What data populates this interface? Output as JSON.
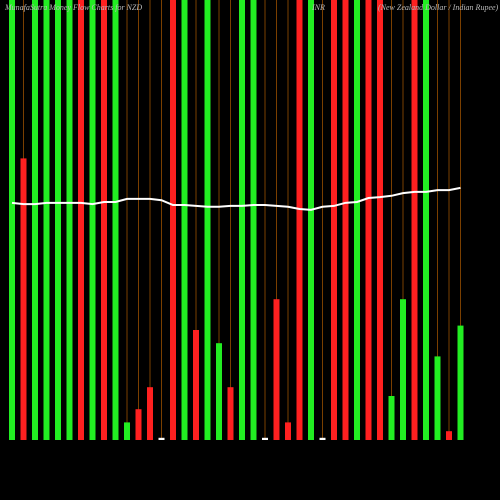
{
  "chart_data": {
    "type": "bar",
    "title": "MunafaSutra Money Flow Charts for NZD",
    "symbol": "INR",
    "subtitle": "(New Zealand Dollar / Indian Rupee)",
    "ylim": [
      0,
      100
    ],
    "values": [
      100,
      64,
      100,
      100,
      100,
      100,
      100,
      100,
      100,
      100,
      4,
      7,
      12,
      0.5,
      100,
      100,
      25,
      100,
      22,
      12,
      100,
      100,
      0.5,
      32,
      4,
      100,
      100,
      0.5,
      100,
      100,
      100,
      100,
      100,
      10,
      32,
      100,
      100,
      19,
      2,
      26
    ],
    "colors": [
      "#22ee22",
      "#ff2020",
      "#22ee22",
      "#22ee22",
      "#22ee22",
      "#22ee22",
      "#ff2020",
      "#22ee22",
      "#ff2020",
      "#22ee22",
      "#22ee22",
      "#ff2020",
      "#ff2020",
      "#ffffff",
      "#ff2020",
      "#22ee22",
      "#ff2020",
      "#22ee22",
      "#22ee22",
      "#ff2020",
      "#22ee22",
      "#22ee22",
      "#ffffff",
      "#ff2020",
      "#ff2020",
      "#ff2020",
      "#22ee22",
      "#ffffff",
      "#ff2020",
      "#ff2020",
      "#22ee22",
      "#ff2020",
      "#ff2020",
      "#22ee22",
      "#22ee22",
      "#ff2020",
      "#22ee22",
      "#22ee22",
      "#ff2020",
      "#22ee22"
    ],
    "line": {
      "color": "#ffffff",
      "values": [
        53.9,
        53.6,
        53.6,
        53.9,
        53.9,
        53.9,
        53.9,
        53.6,
        54.1,
        54.1,
        54.8,
        54.8,
        54.8,
        54.5,
        53.4,
        53.4,
        53.2,
        53.0,
        53.0,
        53.2,
        53.2,
        53.4,
        53.4,
        53.2,
        53.0,
        52.5,
        52.3,
        53.0,
        53.2,
        53.9,
        54.1,
        55.0,
        55.2,
        55.5,
        56.1,
        56.4,
        56.4,
        56.8,
        56.8,
        57.3
      ]
    },
    "separator_color": "#7a3f00"
  }
}
